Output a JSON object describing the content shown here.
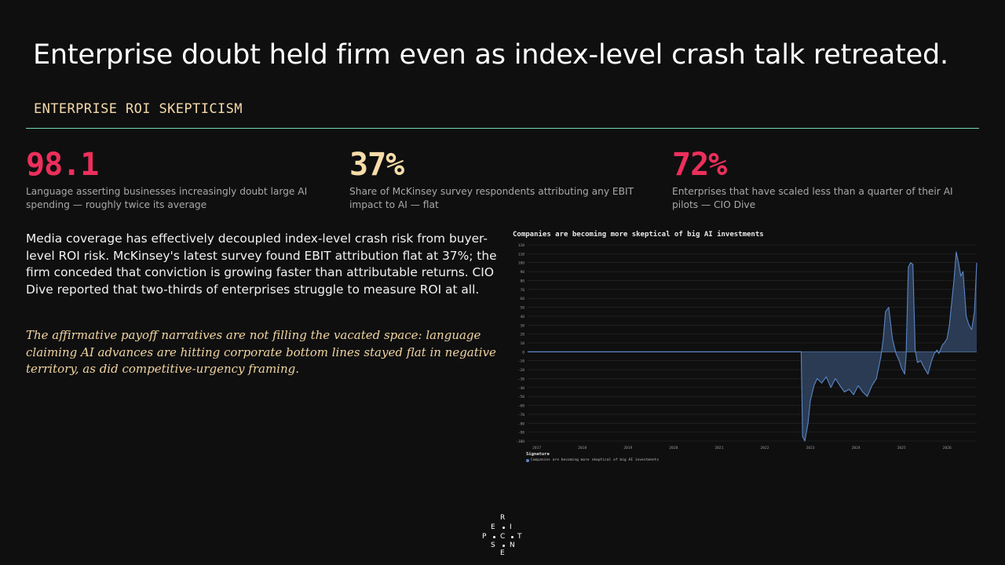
{
  "title": "Enterprise doubt held firm even as index-level crash talk retreated.",
  "section_label": "ENTERPRISE ROI SKEPTICISM",
  "stats": [
    {
      "value": "98.1",
      "description": "Language asserting businesses increasingly doubt large AI spending — roughly twice its average",
      "color": "#ec2f5b"
    },
    {
      "value": "37%",
      "description": "Share of McKinsey survey respondents attributing any EBIT impact to AI — flat",
      "color": "#f7dca8"
    },
    {
      "value": "72%",
      "description": "Enterprises that have scaled less than a quarter of their AI pilots — CIO Dive",
      "color": "#ec2f5b"
    }
  ],
  "body_text": "Media coverage has effectively decoupled index-level crash risk from buyer-level ROI risk. McKinsey's latest survey found EBIT attribution flat at 37%; the firm conceded that conviction is growing faster than attributable returns. CIO Dive reported that two-thirds of enterprises struggle to measure ROI at all.",
  "italic_text": "The affirmative payoff narratives are not filling the vacated space: language claiming AI advances are hitting corporate bottom lines stayed flat in negative territory, as did competitive-urgency framing.",
  "logo": {
    "letters": [
      "R",
      "E",
      "I",
      "P",
      "C",
      "T",
      "S",
      "N",
      "E"
    ]
  },
  "chart_data": {
    "type": "area",
    "title": "Companies are becoming more skeptical of big AI investments",
    "xlabel": "",
    "ylabel": "",
    "ylim": [
      -100,
      120
    ],
    "xlim": [
      2016.8,
      2026.65
    ],
    "yticks": [
      120,
      110,
      100,
      90,
      80,
      70,
      60,
      50,
      40,
      30,
      20,
      10,
      0,
      -10,
      -20,
      -30,
      -40,
      -50,
      -60,
      -70,
      -80,
      -90,
      -100
    ],
    "xticks": [
      "2017",
      "2018",
      "2019",
      "2020",
      "2021",
      "2022",
      "2023",
      "2024",
      "2025",
      "2026"
    ],
    "xtick_values": [
      2017,
      2018,
      2019,
      2020,
      2021,
      2022,
      2023,
      2024,
      2025,
      2026
    ],
    "grid": true,
    "legend_title": "Signature",
    "legend_position": "bottom-left",
    "colors": {
      "line": "#5b86c4",
      "fill": "#2c3e57",
      "grid": "#2a2a2a",
      "zero": "#6d8fc0"
    },
    "series": [
      {
        "name": "Companies are becoming more skeptical of big AI investments",
        "x": [
          2016.8,
          2022.8,
          2022.83,
          2022.88,
          2022.95,
          2023.0,
          2023.08,
          2023.15,
          2023.25,
          2023.35,
          2023.45,
          2023.55,
          2023.65,
          2023.75,
          2023.85,
          2023.95,
          2024.05,
          2024.15,
          2024.25,
          2024.35,
          2024.45,
          2024.55,
          2024.6,
          2024.65,
          2024.72,
          2024.8,
          2024.88,
          2024.95,
          2025.0,
          2025.04,
          2025.07,
          2025.1,
          2025.15,
          2025.2,
          2025.25,
          2025.3,
          2025.35,
          2025.42,
          2025.5,
          2025.58,
          2025.66,
          2025.72,
          2025.78,
          2025.82,
          2025.86,
          2025.9,
          2025.94,
          2026.0,
          2026.05,
          2026.1,
          2026.15,
          2026.2,
          2026.25,
          2026.3,
          2026.35,
          2026.42,
          2026.48,
          2026.54,
          2026.6,
          2026.65
        ],
        "y": [
          0,
          0,
          -95,
          -100,
          -80,
          -55,
          -38,
          -30,
          -35,
          -28,
          -40,
          -30,
          -38,
          -45,
          -42,
          -48,
          -38,
          -45,
          -50,
          -38,
          -30,
          -5,
          15,
          45,
          50,
          15,
          -2,
          -10,
          -18,
          -22,
          -25,
          -5,
          95,
          100,
          98,
          2,
          -12,
          -10,
          -18,
          -25,
          -10,
          -2,
          2,
          -2,
          3,
          8,
          10,
          15,
          30,
          55,
          80,
          112,
          100,
          85,
          90,
          40,
          30,
          25,
          45,
          100
        ]
      }
    ]
  }
}
